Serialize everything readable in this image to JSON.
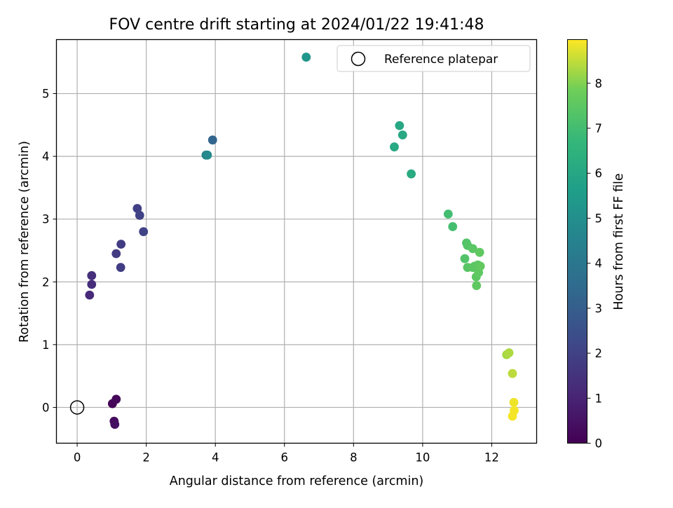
{
  "chart_data": {
    "type": "scatter",
    "title": "FOV centre drift starting at 2024/01/22 19:41:48",
    "xlabel": "Angular distance from reference (arcmin)",
    "ylabel": "Rotation from reference (arcmin)",
    "colorbar_label": "Hours from first FF file",
    "xlim": [
      -0.6,
      13.3
    ],
    "ylim": [
      -0.57,
      5.86
    ],
    "xticks": [
      0,
      2,
      4,
      6,
      8,
      10,
      12
    ],
    "yticks": [
      0,
      1,
      2,
      3,
      4,
      5
    ],
    "colorbar_ticks": [
      0,
      1,
      2,
      3,
      4,
      5,
      6,
      7,
      8
    ],
    "colorbar_range": [
      0,
      8.97
    ],
    "colormap": "viridis",
    "grid": true,
    "legend": {
      "position": "top-right",
      "entries": [
        {
          "label": "Reference platepar",
          "marker": "hollow-circle",
          "color": "#000000"
        }
      ]
    },
    "reference_point": {
      "x": 0,
      "y": 0
    },
    "points": [
      {
        "x": 1.02,
        "y": 0.06,
        "t": 0.1
      },
      {
        "x": 1.13,
        "y": 0.13,
        "t": 0.2
      },
      {
        "x": 1.07,
        "y": -0.22,
        "t": 0.3
      },
      {
        "x": 1.09,
        "y": -0.27,
        "t": 0.4
      },
      {
        "x": 0.36,
        "y": 1.79,
        "t": 1.2
      },
      {
        "x": 0.42,
        "y": 1.96,
        "t": 1.3
      },
      {
        "x": 0.42,
        "y": 2.1,
        "t": 1.4
      },
      {
        "x": 1.13,
        "y": 2.45,
        "t": 1.75
      },
      {
        "x": 1.26,
        "y": 2.23,
        "t": 1.85
      },
      {
        "x": 1.27,
        "y": 2.6,
        "t": 1.8
      },
      {
        "x": 1.74,
        "y": 3.17,
        "t": 1.95
      },
      {
        "x": 1.81,
        "y": 3.06,
        "t": 2.0
      },
      {
        "x": 1.92,
        "y": 2.8,
        "t": 2.05
      },
      {
        "x": 3.73,
        "y": 4.02,
        "t": 4.5
      },
      {
        "x": 3.77,
        "y": 4.02,
        "t": 4.8
      },
      {
        "x": 3.92,
        "y": 4.26,
        "t": 3.3
      },
      {
        "x": 6.63,
        "y": 5.58,
        "t": 5.3
      },
      {
        "x": 9.18,
        "y": 4.15,
        "t": 6.05
      },
      {
        "x": 9.33,
        "y": 4.49,
        "t": 6.0
      },
      {
        "x": 9.42,
        "y": 4.34,
        "t": 6.05
      },
      {
        "x": 9.67,
        "y": 3.72,
        "t": 6.15
      },
      {
        "x": 10.74,
        "y": 3.08,
        "t": 7.0
      },
      {
        "x": 10.87,
        "y": 2.88,
        "t": 7.05
      },
      {
        "x": 11.22,
        "y": 2.37,
        "t": 7.3
      },
      {
        "x": 11.27,
        "y": 2.62,
        "t": 7.3
      },
      {
        "x": 11.3,
        "y": 2.58,
        "t": 7.35
      },
      {
        "x": 11.3,
        "y": 2.23,
        "t": 7.4
      },
      {
        "x": 11.45,
        "y": 2.53,
        "t": 7.45
      },
      {
        "x": 11.45,
        "y": 2.23,
        "t": 7.45
      },
      {
        "x": 11.5,
        "y": 2.25,
        "t": 7.5
      },
      {
        "x": 11.55,
        "y": 2.08,
        "t": 7.5
      },
      {
        "x": 11.56,
        "y": 1.94,
        "t": 7.55
      },
      {
        "x": 11.6,
        "y": 2.27,
        "t": 7.5
      },
      {
        "x": 11.62,
        "y": 2.15,
        "t": 7.55
      },
      {
        "x": 11.65,
        "y": 2.47,
        "t": 7.55
      },
      {
        "x": 11.67,
        "y": 2.25,
        "t": 7.6
      },
      {
        "x": 12.43,
        "y": 0.84,
        "t": 8.3
      },
      {
        "x": 12.5,
        "y": 0.87,
        "t": 8.35
      },
      {
        "x": 12.6,
        "y": 0.54,
        "t": 8.45
      },
      {
        "x": 12.6,
        "y": -0.14,
        "t": 8.9
      },
      {
        "x": 12.64,
        "y": 0.08,
        "t": 8.85
      },
      {
        "x": 12.65,
        "y": -0.05,
        "t": 8.9
      }
    ]
  }
}
